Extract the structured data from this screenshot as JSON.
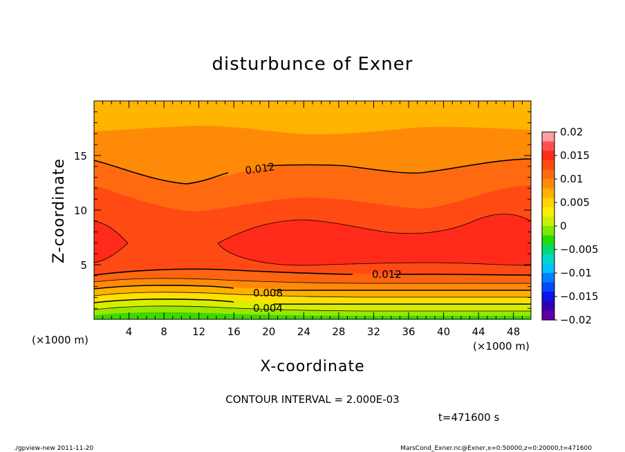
{
  "chart_data": {
    "type": "contour",
    "title": "disturbunce of Exner",
    "xlabel": "X-coordinate",
    "ylabel": "Z-coordinate",
    "x_unit_left": "(×1000 m)",
    "x_unit_right": "(×1000 m)",
    "xlim": [
      0,
      50
    ],
    "ylim": [
      0,
      20
    ],
    "x_ticks": [
      4,
      8,
      12,
      16,
      20,
      24,
      28,
      32,
      36,
      40,
      44,
      48
    ],
    "x_tick_labels": [
      "4",
      "8",
      "12",
      "16",
      "20",
      "24",
      "28",
      "32",
      "36",
      "40",
      "44",
      "48"
    ],
    "y_ticks": [
      5,
      10,
      15
    ],
    "y_tick_labels": [
      "5",
      "10",
      "15"
    ],
    "contour_interval_text": "CONTOUR INTERVAL = 2.000E-03",
    "time_text": "t=471600 s",
    "contour_labels": [
      {
        "text": "0.012",
        "x": 17.3,
        "z": 13.6
      },
      {
        "text": "0.012",
        "x": 31.8,
        "z": 4.1
      },
      {
        "text": "0.008",
        "x": 18.2,
        "z": 2.4
      },
      {
        "text": "0.004",
        "x": 18.2,
        "z": 1.0
      }
    ],
    "colorbar": {
      "tick_labels": [
        "0.02",
        "0.015",
        "0.01",
        "0.005",
        "0",
        "−0.005",
        "−0.01",
        "−0.015",
        "−0.02"
      ],
      "levels": [
        0.02,
        0.015,
        0.01,
        0.005,
        0,
        -0.005,
        -0.01,
        -0.015,
        -0.02
      ],
      "colors_top_to_bottom": [
        "#ff9fa0",
        "#ff5050",
        "#ff2a1a",
        "#ff4a14",
        "#ff6a10",
        "#ff8a0a",
        "#ffb000",
        "#ffd200",
        "#f8ef00",
        "#c8f000",
        "#7ee800",
        "#22dd00",
        "#00d870",
        "#00d8c8",
        "#00c0ff",
        "#0080ff",
        "#0048ff",
        "#1010e8",
        "#3000b0",
        "#6000a8"
      ]
    }
  },
  "footer": {
    "left": "./gpview-new   2011-11-20",
    "right": "MarsCond_Exner.nc@Exner,x=0:50000,z=0:20000,t=471600"
  },
  "colors": {
    "band_0_002": "#3ed800",
    "band_002_004": "#9ae600",
    "band_004_006": "#d8ee00",
    "band_006_008": "#ffe000",
    "band_008_010": "#ffb000",
    "band_010_012": "#ff8a08",
    "band_012_014": "#ff6410",
    "band_014_016": "#ff3f18",
    "core": "#ff2222",
    "top": "#ffb400"
  }
}
